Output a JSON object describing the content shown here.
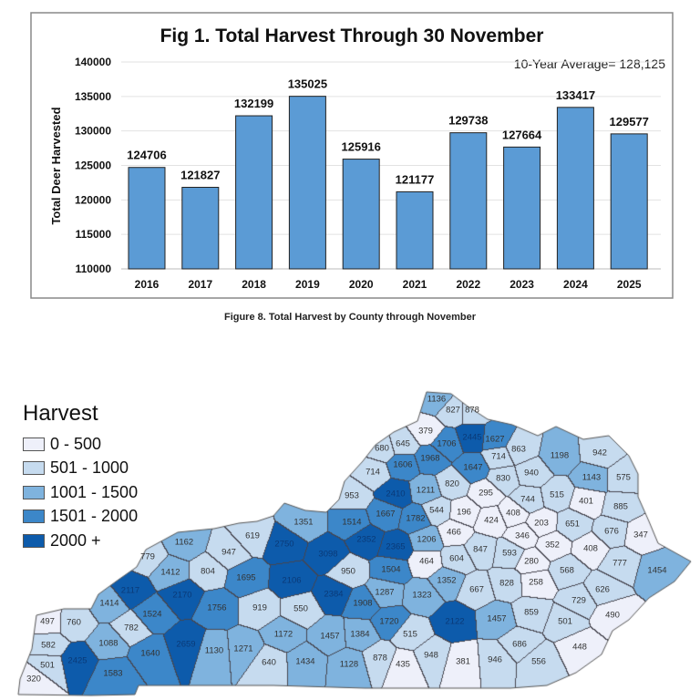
{
  "chart_data": {
    "type": "bar",
    "title": "Fig 1. Total Harvest Through 30 November",
    "ylabel": "Total Deer Harvested",
    "xlabel": "",
    "categories": [
      "2016",
      "2017",
      "2018",
      "2019",
      "2020",
      "2021",
      "2022",
      "2023",
      "2024",
      "2025"
    ],
    "values": [
      124706,
      121827,
      132199,
      135025,
      125916,
      121177,
      129738,
      127664,
      133417,
      129577
    ],
    "data_labels": [
      "124706",
      "121827",
      "132199",
      "135025",
      "125916",
      "121177",
      "129738",
      "127664",
      "133417",
      "129577"
    ],
    "ylim": [
      110000,
      140000
    ],
    "yticks": [
      "110000",
      "115000",
      "120000",
      "125000",
      "130000",
      "135000",
      "140000"
    ],
    "grid": true,
    "annotation": "10-Year Average= 128,125",
    "bar_color": "#5b9bd5"
  },
  "caption": "Figure 8. Total Harvest by County through November",
  "map": {
    "legend_title": "Harvest",
    "classes": [
      {
        "label": "0 - 500",
        "max": 500,
        "color": "#eef0fa"
      },
      {
        "label": "501 - 1000",
        "max": 1000,
        "color": "#c6dbef"
      },
      {
        "label": "1001 - 1500",
        "max": 1500,
        "color": "#7fb3de"
      },
      {
        "label": "1501 - 2000",
        "max": 2000,
        "color": "#3c87c9"
      },
      {
        "label": "2000 +",
        "max": 999999,
        "color": "#0d5bab"
      }
    ],
    "counties": [
      497,
      760,
      582,
      501,
      320,
      2425,
      1088,
      1583,
      1640,
      2659,
      782,
      1414,
      2117,
      1524,
      2170,
      1412,
      779,
      1162,
      804,
      947,
      619,
      1695,
      1756,
      919,
      550,
      1130,
      1271,
      640,
      1172,
      1434,
      1457,
      1128,
      1384,
      2750,
      1351,
      3098,
      2106,
      950,
      2384,
      1136,
      827,
      878,
      379,
      1706,
      2445,
      1627,
      680,
      645,
      1968,
      1606,
      714,
      714,
      863,
      1198,
      942,
      1647,
      830,
      940,
      1143,
      575,
      820,
      1211,
      2410,
      295,
      953,
      744,
      515,
      401,
      885,
      1667,
      1782,
      544,
      196,
      424,
      408,
      203,
      651,
      676,
      347,
      2352,
      2365,
      1206,
      466,
      346,
      352,
      408,
      847,
      593,
      604,
      464,
      280,
      1504,
      568,
      777,
      1454,
      1352,
      667,
      828,
      258,
      626,
      1287,
      1323,
      1908,
      729,
      1720,
      2122,
      1457,
      859,
      501,
      490,
      515,
      686,
      448,
      878,
      435,
      948,
      381,
      946,
      556,
      1514
    ]
  }
}
